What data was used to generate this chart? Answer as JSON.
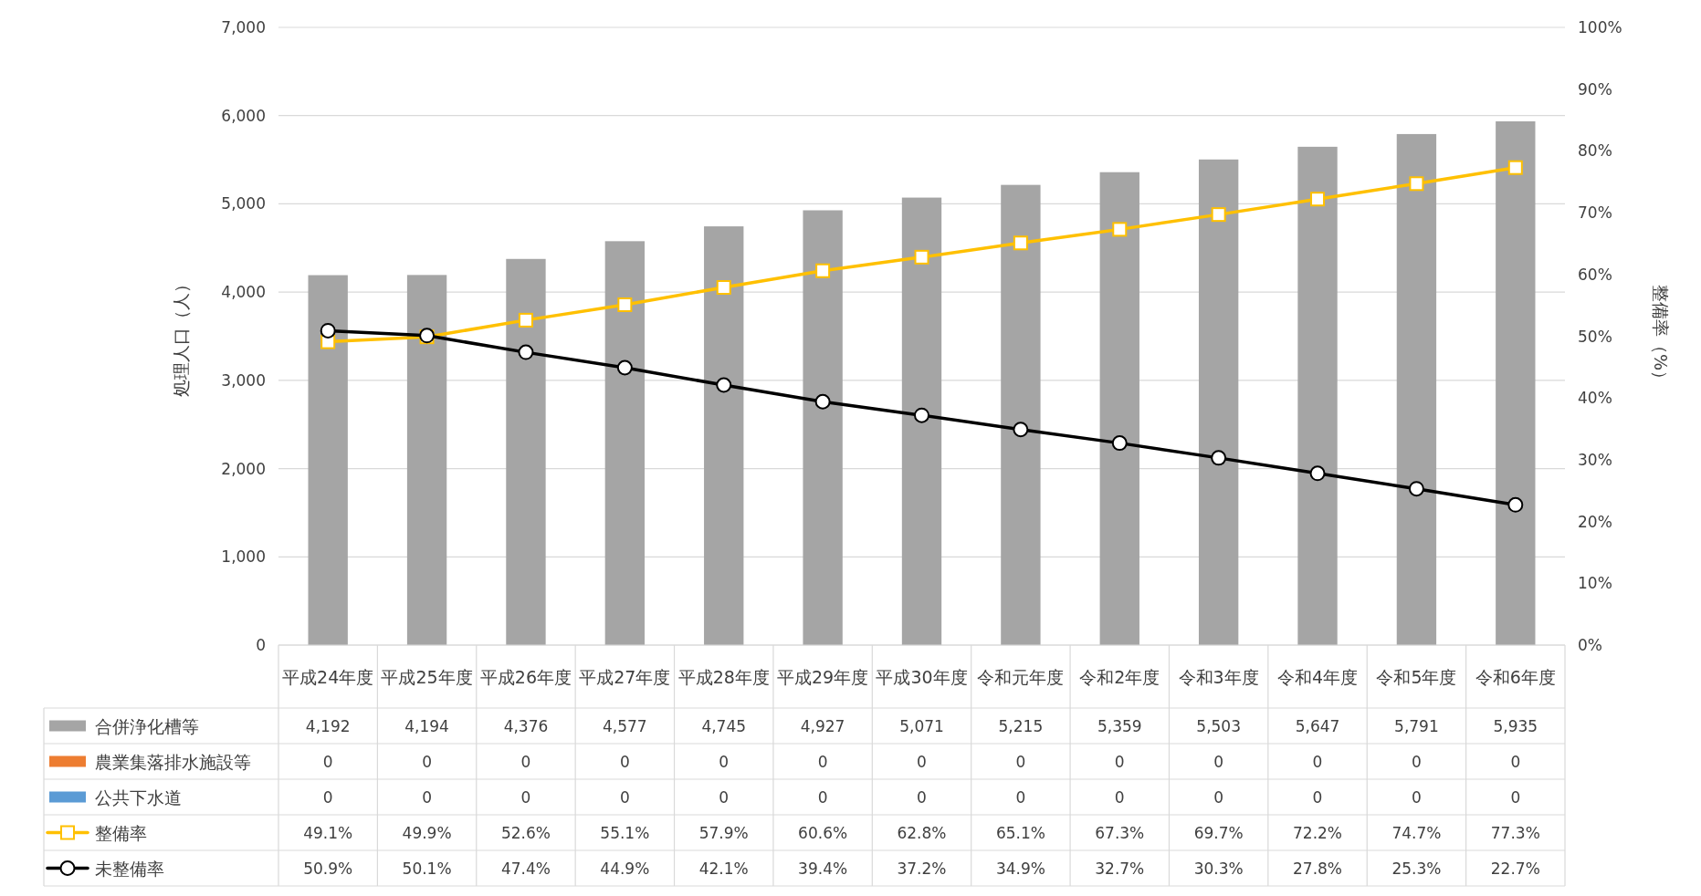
{
  "chart_data": {
    "type": "bar",
    "ylabel": "処理人口（人）",
    "y2label": "整備率（%）",
    "categories": [
      "平成24年度",
      "平成25年度",
      "平成26年度",
      "平成27年度",
      "平成28年度",
      "平成29年度",
      "平成30年度",
      "令和元年度",
      "令和2年度",
      "令和3年度",
      "令和4年度",
      "令和5年度",
      "令和6年度"
    ],
    "ylim": [
      0,
      7000
    ],
    "yticks": [
      {
        "value": 0,
        "label": "0"
      },
      {
        "value": 1000,
        "label": "1,000"
      },
      {
        "value": 2000,
        "label": "2,000"
      },
      {
        "value": 3000,
        "label": "3,000"
      },
      {
        "value": 4000,
        "label": "4,000"
      },
      {
        "value": 5000,
        "label": "5,000"
      },
      {
        "value": 6000,
        "label": "6,000"
      },
      {
        "value": 7000,
        "label": "7,000"
      }
    ],
    "y2lim": [
      0,
      100
    ],
    "y2ticks": [
      {
        "value": 0,
        "label": "0%"
      },
      {
        "value": 10,
        "label": "10%"
      },
      {
        "value": 20,
        "label": "20%"
      },
      {
        "value": 30,
        "label": "30%"
      },
      {
        "value": 40,
        "label": "40%"
      },
      {
        "value": 50,
        "label": "50%"
      },
      {
        "value": 60,
        "label": "60%"
      },
      {
        "value": 70,
        "label": "70%"
      },
      {
        "value": 80,
        "label": "80%"
      },
      {
        "value": 90,
        "label": "90%"
      },
      {
        "value": 100,
        "label": "100%"
      }
    ],
    "grid": "y",
    "legend": "bottom",
    "series": [
      {
        "name": "合併浄化槽等",
        "color": "#a5a5a5",
        "values": [
          4192,
          4194,
          4376,
          4577,
          4745,
          4927,
          5071,
          5215,
          5359,
          5503,
          5647,
          5791,
          5935
        ],
        "value_labels": [
          "4,192",
          "4,194",
          "4,376",
          "4,577",
          "4,745",
          "4,927",
          "5,071",
          "5,215",
          "5,359",
          "5,503",
          "5,647",
          "5,791",
          "5,935"
        ]
      },
      {
        "name": "農業集落排水施設等",
        "color": "#ed7d31",
        "values": [
          0,
          0,
          0,
          0,
          0,
          0,
          0,
          0,
          0,
          0,
          0,
          0,
          0
        ],
        "value_labels": [
          "0",
          "0",
          "0",
          "0",
          "0",
          "0",
          "0",
          "0",
          "0",
          "0",
          "0",
          "0",
          "0"
        ]
      },
      {
        "name": "公共下水道",
        "color": "#5b9bd5",
        "values": [
          0,
          0,
          0,
          0,
          0,
          0,
          0,
          0,
          0,
          0,
          0,
          0,
          0
        ],
        "value_labels": [
          "0",
          "0",
          "0",
          "0",
          "0",
          "0",
          "0",
          "0",
          "0",
          "0",
          "0",
          "0",
          "0"
        ]
      },
      {
        "name": "整備率",
        "type": "line",
        "axis": "y2",
        "marker": "square",
        "color": "#ffc000",
        "values": [
          49.1,
          49.9,
          52.6,
          55.1,
          57.9,
          60.6,
          62.8,
          65.1,
          67.3,
          69.7,
          72.2,
          74.7,
          77.3
        ],
        "value_labels": [
          "49.1%",
          "49.9%",
          "52.6%",
          "55.1%",
          "57.9%",
          "60.6%",
          "62.8%",
          "65.1%",
          "67.3%",
          "69.7%",
          "72.2%",
          "74.7%",
          "77.3%"
        ]
      },
      {
        "name": "未整備率",
        "type": "line",
        "axis": "y2",
        "marker": "circle",
        "color": "#000000",
        "values": [
          50.9,
          50.1,
          47.4,
          44.9,
          42.1,
          39.4,
          37.2,
          34.9,
          32.7,
          30.3,
          27.8,
          25.3,
          22.7
        ],
        "value_labels": [
          "50.9%",
          "50.1%",
          "47.4%",
          "44.9%",
          "42.1%",
          "39.4%",
          "37.2%",
          "34.9%",
          "32.7%",
          "30.3%",
          "27.8%",
          "25.3%",
          "22.7%"
        ]
      }
    ]
  }
}
